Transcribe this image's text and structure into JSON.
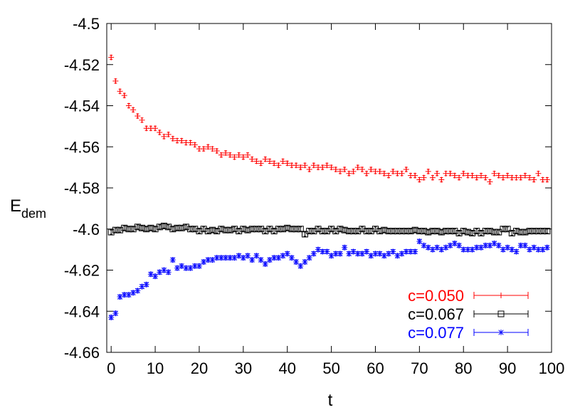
{
  "chart_data": {
    "type": "scatter",
    "title": "",
    "xlabel": "t",
    "ylabel": "E",
    "ylabel_sub": "dem",
    "xlim": [
      -1,
      100
    ],
    "ylim": [
      -4.66,
      -4.5
    ],
    "x_ticks": [
      "0",
      "10",
      "20",
      "30",
      "40",
      "50",
      "60",
      "70",
      "80",
      "90",
      "100"
    ],
    "y_ticks": [
      "-4.5",
      "-4.52",
      "-4.54",
      "-4.56",
      "-4.58",
      "-4.6",
      "-4.62",
      "-4.64",
      "-4.66"
    ],
    "grid": false,
    "legend_position": "bottom-right",
    "x": [
      0,
      1,
      2,
      3,
      4,
      5,
      6,
      7,
      8,
      9,
      10,
      11,
      12,
      13,
      14,
      15,
      16,
      17,
      18,
      19,
      20,
      21,
      22,
      23,
      24,
      25,
      26,
      27,
      28,
      29,
      30,
      31,
      32,
      33,
      34,
      35,
      36,
      37,
      38,
      39,
      40,
      41,
      42,
      43,
      44,
      45,
      46,
      47,
      48,
      49,
      50,
      51,
      52,
      53,
      54,
      55,
      56,
      57,
      58,
      59,
      60,
      61,
      62,
      63,
      64,
      65,
      66,
      67,
      68,
      69,
      70,
      71,
      72,
      73,
      74,
      75,
      76,
      77,
      78,
      79,
      80,
      81,
      82,
      83,
      84,
      85,
      86,
      87,
      88,
      89,
      90,
      91,
      92,
      93,
      94,
      95,
      96,
      97,
      98,
      99
    ],
    "series": [
      {
        "name": "c=0.050",
        "color": "#ff0000",
        "marker": "plus",
        "values": [
          -4.5165,
          -4.528,
          -4.533,
          -4.535,
          -4.54,
          -4.542,
          -4.545,
          -4.547,
          -4.551,
          -4.551,
          -4.551,
          -4.553,
          -4.555,
          -4.554,
          -4.556,
          -4.557,
          -4.557,
          -4.558,
          -4.558,
          -4.559,
          -4.561,
          -4.561,
          -4.56,
          -4.561,
          -4.562,
          -4.564,
          -4.563,
          -4.564,
          -4.565,
          -4.564,
          -4.565,
          -4.564,
          -4.566,
          -4.567,
          -4.568,
          -4.566,
          -4.567,
          -4.568,
          -4.569,
          -4.567,
          -4.568,
          -4.569,
          -4.569,
          -4.57,
          -4.569,
          -4.571,
          -4.569,
          -4.57,
          -4.57,
          -4.569,
          -4.57,
          -4.571,
          -4.572,
          -4.571,
          -4.573,
          -4.572,
          -4.57,
          -4.571,
          -4.573,
          -4.571,
          -4.572,
          -4.572,
          -4.573,
          -4.574,
          -4.572,
          -4.573,
          -4.573,
          -4.571,
          -4.574,
          -4.574,
          -4.576,
          -4.575,
          -4.572,
          -4.575,
          -4.573,
          -4.576,
          -4.573,
          -4.573,
          -4.574,
          -4.575,
          -4.573,
          -4.574,
          -4.574,
          -4.575,
          -4.574,
          -4.575,
          -4.577,
          -4.573,
          -4.574,
          -4.575,
          -4.574,
          -4.575,
          -4.575,
          -4.575,
          -4.574,
          -4.575,
          -4.576,
          -4.573,
          -4.576,
          -4.576
        ]
      },
      {
        "name": "c=0.067",
        "color": "#000000",
        "marker": "square",
        "values": [
          -4.6015,
          -4.6005,
          -4.6005,
          -4.5995,
          -4.6,
          -4.6,
          -4.599,
          -4.5995,
          -4.6,
          -4.5995,
          -4.6,
          -4.599,
          -4.5985,
          -4.599,
          -4.6,
          -4.5995,
          -4.5995,
          -4.599,
          -4.6,
          -4.6,
          -4.601,
          -4.6,
          -4.601,
          -4.6005,
          -4.601,
          -4.6,
          -4.6005,
          -4.6005,
          -4.6,
          -4.601,
          -4.6,
          -4.6005,
          -4.6,
          -4.6,
          -4.6,
          -4.601,
          -4.6,
          -4.601,
          -4.6,
          -4.6,
          -4.5995,
          -4.6,
          -4.6,
          -4.6,
          -4.6025,
          -4.601,
          -4.601,
          -4.6,
          -4.601,
          -4.601,
          -4.6,
          -4.601,
          -4.6,
          -4.6005,
          -4.601,
          -4.601,
          -4.601,
          -4.6,
          -4.601,
          -4.601,
          -4.6,
          -4.601,
          -4.6005,
          -4.601,
          -4.601,
          -4.601,
          -4.601,
          -4.601,
          -4.601,
          -4.6005,
          -4.601,
          -4.601,
          -4.6015,
          -4.601,
          -4.601,
          -4.6015,
          -4.601,
          -4.601,
          -4.601,
          -4.602,
          -4.601,
          -4.6015,
          -4.602,
          -4.601,
          -4.602,
          -4.601,
          -4.601,
          -4.6015,
          -4.6015,
          -4.6,
          -4.6,
          -4.602,
          -4.601,
          -4.6015,
          -4.6015,
          -4.601,
          -4.601,
          -4.601,
          -4.601,
          -4.601
        ]
      },
      {
        "name": "c=0.077",
        "color": "#0000ff",
        "marker": "star",
        "values": [
          -4.643,
          -4.641,
          -4.633,
          -4.632,
          -4.632,
          -4.631,
          -4.63,
          -4.628,
          -4.627,
          -4.622,
          -4.623,
          -4.621,
          -4.62,
          -4.621,
          -4.615,
          -4.619,
          -4.618,
          -4.619,
          -4.619,
          -4.618,
          -4.618,
          -4.616,
          -4.615,
          -4.615,
          -4.614,
          -4.614,
          -4.614,
          -4.614,
          -4.614,
          -4.613,
          -4.614,
          -4.613,
          -4.615,
          -4.613,
          -4.615,
          -4.617,
          -4.615,
          -4.614,
          -4.614,
          -4.613,
          -4.612,
          -4.614,
          -4.616,
          -4.618,
          -4.616,
          -4.614,
          -4.612,
          -4.61,
          -4.611,
          -4.611,
          -4.613,
          -4.612,
          -4.612,
          -4.609,
          -4.612,
          -4.611,
          -4.612,
          -4.612,
          -4.611,
          -4.613,
          -4.612,
          -4.612,
          -4.613,
          -4.612,
          -4.611,
          -4.613,
          -4.612,
          -4.611,
          -4.611,
          -4.611,
          -4.606,
          -4.608,
          -4.609,
          -4.61,
          -4.609,
          -4.61,
          -4.609,
          -4.608,
          -4.607,
          -4.608,
          -4.61,
          -4.61,
          -4.61,
          -4.609,
          -4.609,
          -4.608,
          -4.608,
          -4.607,
          -4.608,
          -4.61,
          -4.609,
          -4.61,
          -4.611,
          -4.608,
          -4.608,
          -4.61,
          -4.609,
          -4.61,
          -4.61,
          -4.609
        ]
      }
    ]
  }
}
